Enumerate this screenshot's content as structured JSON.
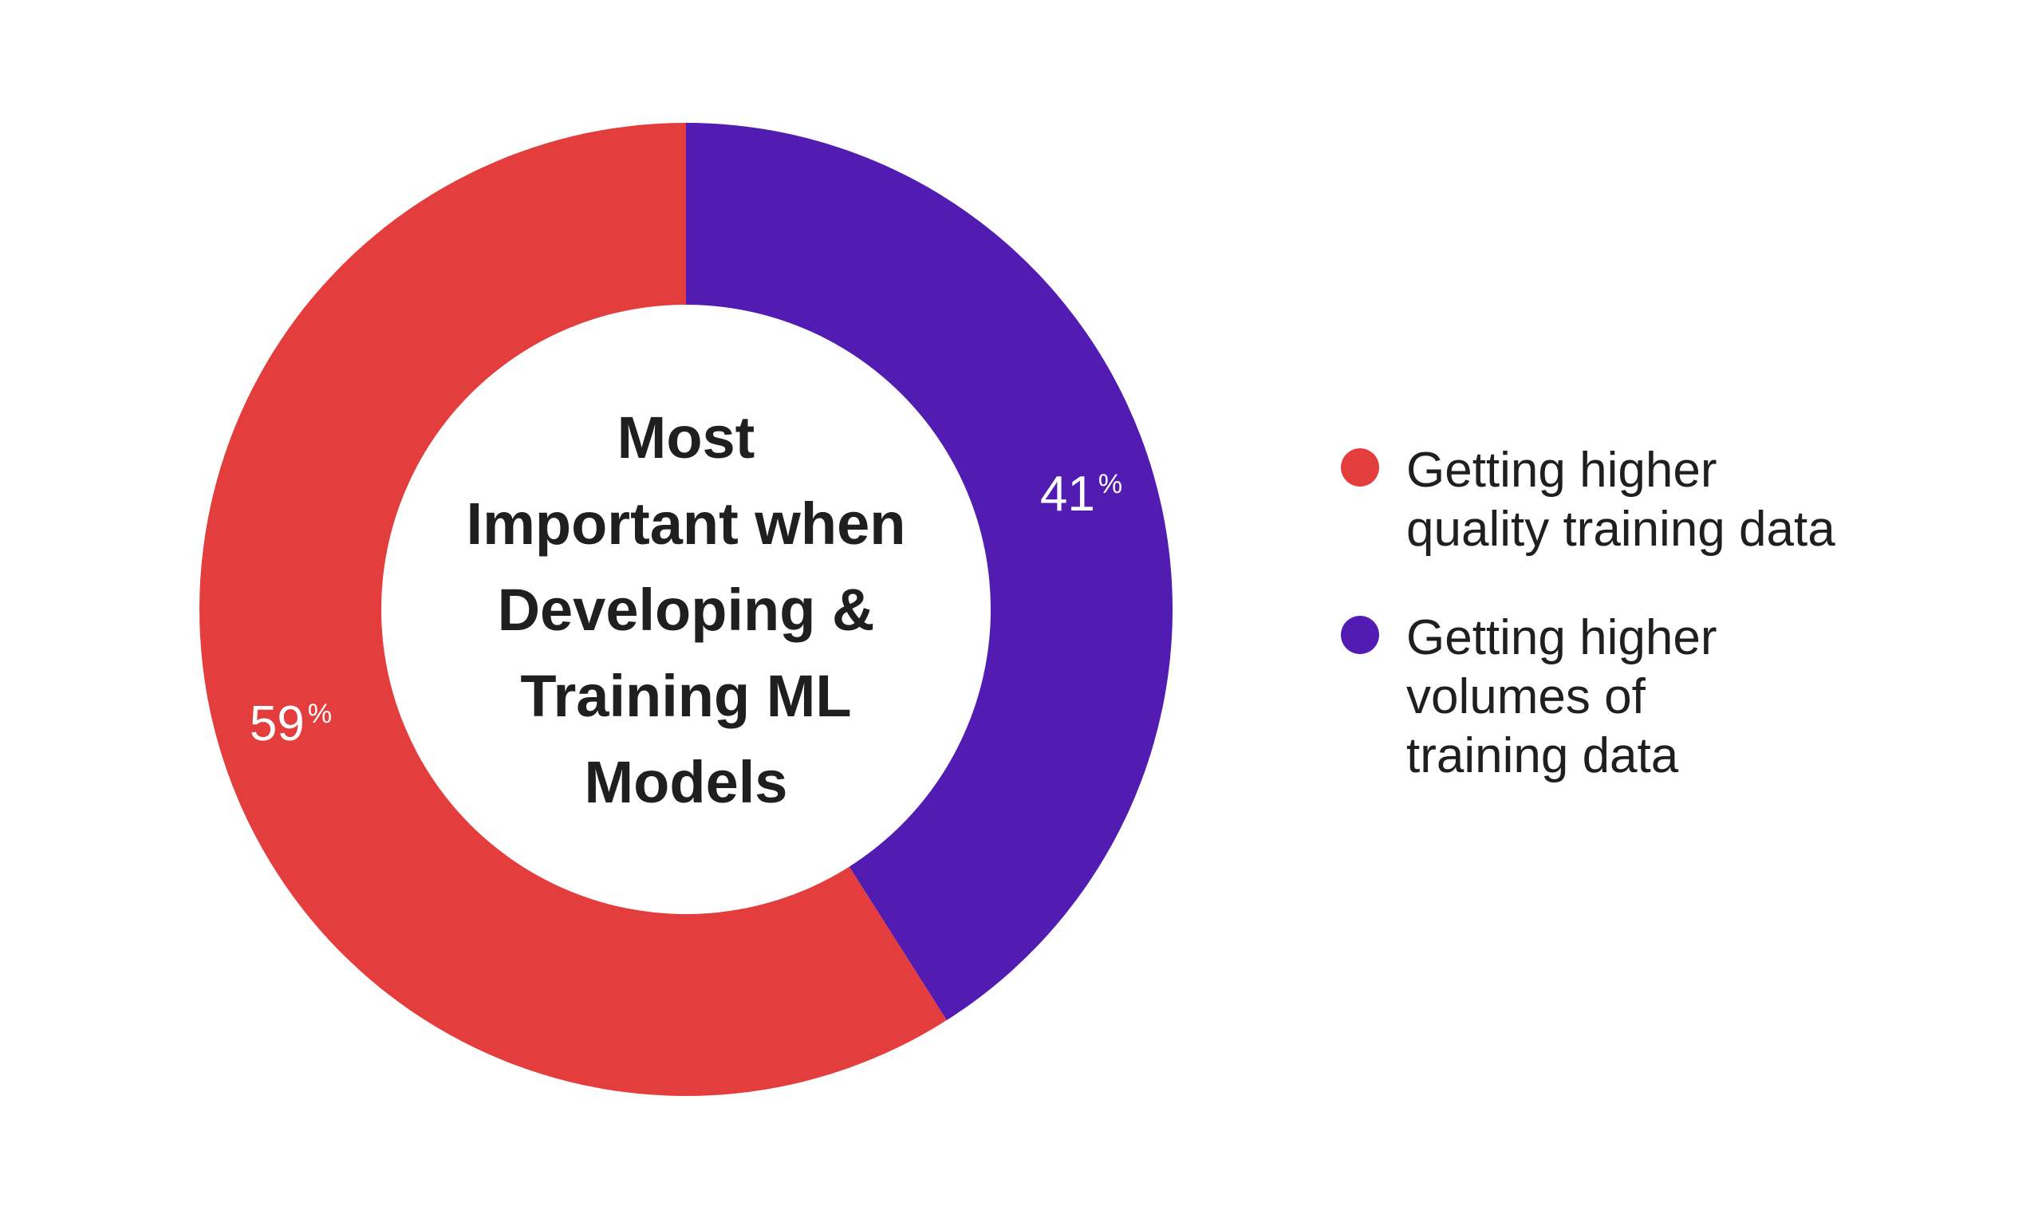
{
  "chart_data": {
    "type": "pie",
    "title": "Most Important when Developing & Training ML Models",
    "title_lines": [
      "Most",
      "Important when",
      "Developing &",
      "Training ML",
      "Models"
    ],
    "slices": [
      {
        "name": "Getting higher quality training data",
        "legend_lines": [
          "Getting higher",
          "quality training data"
        ],
        "value": 59,
        "label_number": "59",
        "label_unit": "%",
        "color": "#e43d3d"
      },
      {
        "name": "Getting higher volumes of training data",
        "legend_lines": [
          "Getting higher",
          "volumes of",
          "training data"
        ],
        "value": 41,
        "label_number": "41",
        "label_unit": "%",
        "color": "#521bb2"
      }
    ],
    "donut": true,
    "legend_position": "right"
  }
}
